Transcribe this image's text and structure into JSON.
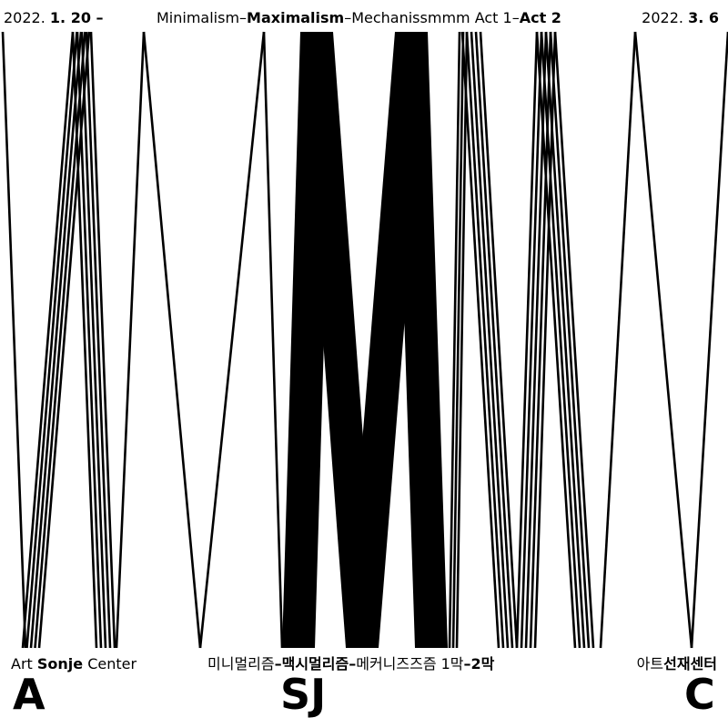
{
  "header": {
    "date_start": [
      "2022.",
      "1. 20 –"
    ],
    "title": [
      "Minimalism–",
      "Maximalism",
      "–Mechanissmmm Act 1–",
      "Act 2"
    ],
    "date_end": [
      "2022.",
      "3. 6"
    ]
  },
  "footer": {
    "venue_en": [
      "Art ",
      "Sonje",
      " Center"
    ],
    "title_ko": [
      "미니멀리즘",
      "–맥시멀리즘–",
      "메커니즈즈즘 1막",
      "–2막"
    ],
    "venue_ko": [
      "아트",
      "선재센터"
    ]
  },
  "letters": [
    "A",
    "SJ",
    "C"
  ]
}
